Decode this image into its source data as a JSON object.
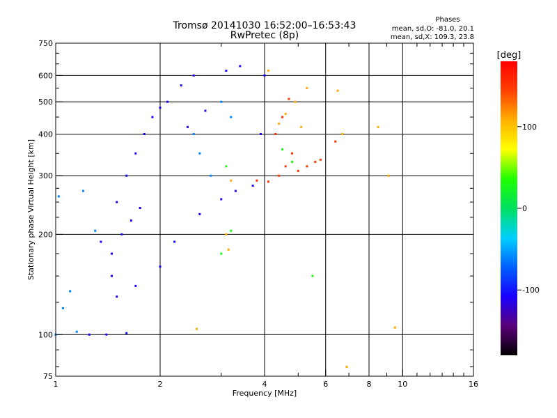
{
  "chart_data": {
    "type": "scatter",
    "title": "Tromsø 20141030 16:52:00–16:53:43",
    "subtitle": "RwPretec (8p)",
    "xlabel": "Frequency [MHz]",
    "ylabel": "Stationary phase Virtual Height [km]",
    "x_scale": "log",
    "y_scale": "log",
    "xlim": [
      1,
      16
    ],
    "ylim": [
      75,
      750
    ],
    "xticks": [
      1,
      2,
      4,
      6,
      8,
      10,
      16
    ],
    "yticks": [
      75,
      100,
      200,
      300,
      400,
      500,
      600,
      750
    ],
    "x_gridlines": [
      2,
      4,
      6,
      8,
      10
    ],
    "y_gridlines": [
      100,
      200,
      300,
      400,
      500,
      600
    ],
    "minor_xticks": [
      3,
      5,
      7,
      9,
      11,
      12,
      13,
      14,
      15
    ],
    "minor_yticks": [
      80,
      90,
      125,
      150,
      175,
      225,
      250,
      275,
      350,
      450,
      550,
      650,
      700
    ],
    "grid": true,
    "stats_title": "Phases",
    "stats_o": "mean, sd,O: -81.0, 20.1",
    "stats_x": "mean, sd,X: 109.3, 23.8",
    "colorbar": {
      "label": "[deg]",
      "range": [
        -180,
        180
      ],
      "ticks": [
        100,
        0,
        -100
      ],
      "colors": [
        "#000000",
        "#5a007a",
        "#1a00ff",
        "#0060ff",
        "#00d0ff",
        "#00e060",
        "#20ff00",
        "#ffff00",
        "#ffb000",
        "#ff4000",
        "#ff0000"
      ]
    },
    "series": [
      {
        "phase": -105,
        "points": [
          [
            1.35,
            190
          ],
          [
            1.45,
            150
          ],
          [
            1.5,
            250
          ],
          [
            1.6,
            300
          ],
          [
            1.7,
            350
          ],
          [
            1.8,
            400
          ],
          [
            1.9,
            450
          ],
          [
            2.0,
            480
          ],
          [
            2.1,
            500
          ],
          [
            2.3,
            560
          ],
          [
            2.5,
            600
          ],
          [
            1.5,
            130
          ],
          [
            1.7,
            140
          ],
          [
            2.0,
            160
          ],
          [
            2.2,
            190
          ],
          [
            2.6,
            230
          ],
          [
            3.0,
            255
          ],
          [
            3.3,
            270
          ],
          [
            3.7,
            280
          ],
          [
            3.9,
            400
          ],
          [
            4.0,
            600
          ],
          [
            1.25,
            100
          ],
          [
            1.4,
            100
          ],
          [
            1.6,
            101
          ],
          [
            1.45,
            175
          ],
          [
            1.55,
            200
          ],
          [
            1.65,
            220
          ],
          [
            1.75,
            240
          ],
          [
            2.4,
            420
          ],
          [
            2.7,
            470
          ],
          [
            3.1,
            620
          ],
          [
            3.4,
            640
          ]
        ]
      },
      {
        "phase": -60,
        "points": [
          [
            1.05,
            120
          ],
          [
            1.0,
            100
          ],
          [
            1.15,
            102
          ],
          [
            1.2,
            270
          ],
          [
            1.3,
            205
          ],
          [
            2.5,
            400
          ],
          [
            2.6,
            350
          ],
          [
            2.8,
            300
          ],
          [
            3.2,
            450
          ],
          [
            3.0,
            500
          ],
          [
            1.1,
            135
          ],
          [
            1.02,
            260
          ]
        ]
      },
      {
        "phase": 30,
        "points": [
          [
            3.1,
            320
          ],
          [
            3.2,
            205
          ],
          [
            3.0,
            175
          ],
          [
            5.5,
            150
          ],
          [
            4.8,
            330
          ],
          [
            4.5,
            360
          ]
        ]
      },
      {
        "phase": 110,
        "points": [
          [
            3.1,
            200
          ],
          [
            3.15,
            180
          ],
          [
            3.2,
            290
          ],
          [
            4.4,
            430
          ],
          [
            4.6,
            460
          ],
          [
            4.9,
            500
          ],
          [
            5.1,
            420
          ],
          [
            5.3,
            550
          ],
          [
            6.5,
            540
          ],
          [
            6.7,
            400
          ],
          [
            8.5,
            420
          ],
          [
            9.1,
            300
          ],
          [
            9.5,
            105
          ],
          [
            6.9,
            80
          ],
          [
            2.55,
            104
          ],
          [
            4.1,
            620
          ]
        ]
      },
      {
        "phase": 150,
        "points": [
          [
            3.8,
            290
          ],
          [
            4.1,
            288
          ],
          [
            4.4,
            300
          ],
          [
            4.6,
            320
          ],
          [
            4.8,
            350
          ],
          [
            5.0,
            310
          ],
          [
            5.3,
            320
          ],
          [
            5.6,
            330
          ],
          [
            5.8,
            335
          ],
          [
            6.4,
            380
          ],
          [
            4.3,
            400
          ],
          [
            4.5,
            450
          ],
          [
            4.7,
            510
          ]
        ]
      }
    ]
  }
}
